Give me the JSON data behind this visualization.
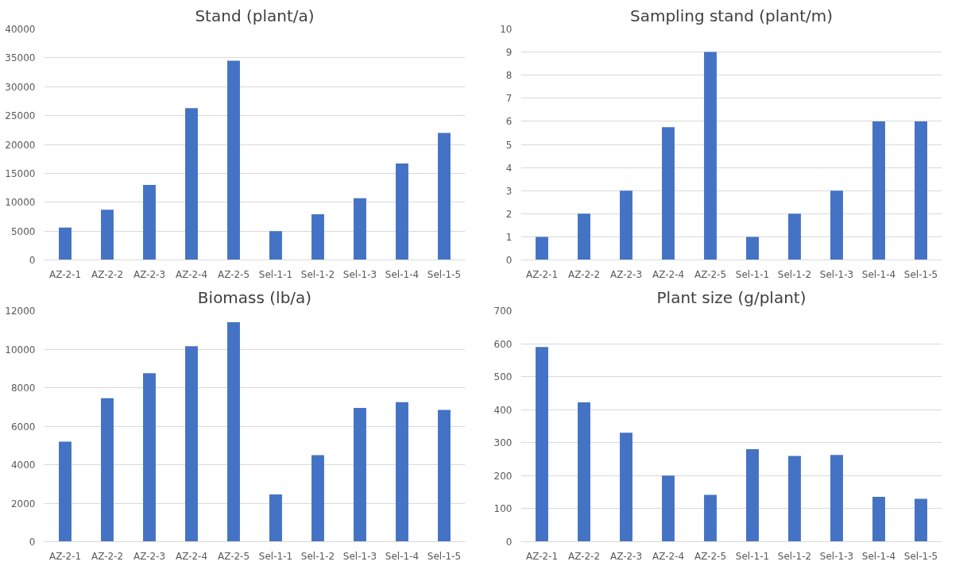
{
  "chart_data": [
    {
      "type": "bar",
      "title": "Stand (plant/a)",
      "categories": [
        "AZ-2-1",
        "AZ-2-2",
        "AZ-2-3",
        "AZ-2-4",
        "AZ-2-5",
        "Sel-1-1",
        "Sel-1-2",
        "Sel-1-3",
        "Sel-1-4",
        "Sel-1-5"
      ],
      "values": [
        5600,
        8700,
        13000,
        26300,
        34500,
        5000,
        7900,
        10700,
        16700,
        22000
      ],
      "color": "#4472c4",
      "ylim": [
        0,
        40000
      ],
      "yticks": [
        0,
        5000,
        10000,
        15000,
        20000,
        25000,
        30000,
        35000,
        40000
      ],
      "grid": "y"
    },
    {
      "type": "bar",
      "title": "Sampling stand (plant/m)",
      "categories": [
        "AZ-2-1",
        "AZ-2-2",
        "AZ-2-3",
        "AZ-2-4",
        "AZ-2-5",
        "Sel-1-1",
        "Sel-1-2",
        "Sel-1-3",
        "Sel-1-4",
        "Sel-1-5"
      ],
      "values": [
        1,
        2,
        3,
        5.75,
        9,
        1,
        2,
        3,
        6,
        6
      ],
      "color": "#4472c4",
      "ylim": [
        0,
        10
      ],
      "yticks": [
        0,
        1,
        2,
        3,
        4,
        5,
        6,
        7,
        8,
        9,
        10
      ],
      "grid": "y"
    },
    {
      "type": "bar",
      "title": "Biomass (lb/a)",
      "categories": [
        "AZ-2-1",
        "AZ-2-2",
        "AZ-2-3",
        "AZ-2-4",
        "AZ-2-5",
        "Sel-1-1",
        "Sel-1-2",
        "Sel-1-3",
        "Sel-1-4",
        "Sel-1-5"
      ],
      "values": [
        5200,
        7450,
        8750,
        10150,
        11400,
        2450,
        4500,
        6950,
        7250,
        6850
      ],
      "color": "#4472c4",
      "ylim": [
        0,
        12000
      ],
      "yticks": [
        0,
        2000,
        4000,
        6000,
        8000,
        10000,
        12000
      ],
      "grid": "y"
    },
    {
      "type": "bar",
      "title": "Plant size (g/plant)",
      "categories": [
        "AZ-2-1",
        "AZ-2-2",
        "AZ-2-3",
        "AZ-2-4",
        "AZ-2-5",
        "Sel-1-1",
        "Sel-1-2",
        "Sel-1-3",
        "Sel-1-4",
        "Sel-1-5"
      ],
      "values": [
        590,
        422,
        330,
        200,
        142,
        280,
        260,
        263,
        136,
        130
      ],
      "color": "#4472c4",
      "ylim": [
        0,
        700
      ],
      "yticks": [
        0,
        100,
        200,
        300,
        400,
        500,
        600,
        700
      ],
      "grid": "y"
    }
  ]
}
